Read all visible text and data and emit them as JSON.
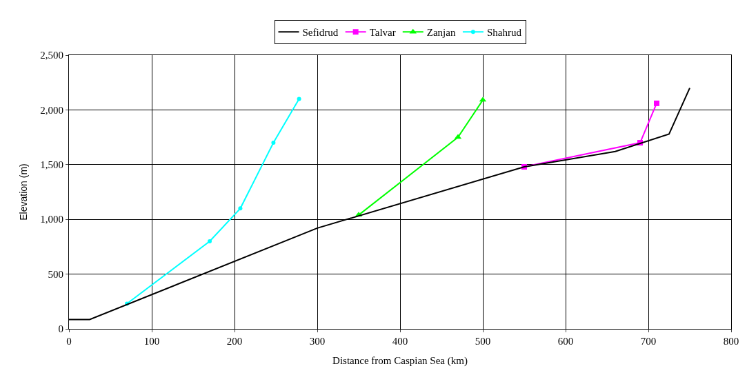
{
  "chart_data": {
    "type": "line",
    "xlabel": "Distance from Caspian Sea (km)",
    "ylabel": "Elevation (m)",
    "xlim": [
      0,
      800
    ],
    "ylim": [
      0,
      2500
    ],
    "xticks": [
      0,
      100,
      200,
      300,
      400,
      500,
      600,
      700,
      800
    ],
    "yticks": [
      {
        "value": 0,
        "label": "0"
      },
      {
        "value": 500,
        "label": "500"
      },
      {
        "value": 1000,
        "label": "1,000"
      },
      {
        "value": 1500,
        "label": "1,500"
      },
      {
        "value": 2000,
        "label": "2,000"
      },
      {
        "value": 2500,
        "label": "2,500"
      }
    ],
    "grid": true,
    "legend": "top",
    "line_style": "solid",
    "series": [
      {
        "name": "Sefidrud",
        "color": "#000000",
        "marker": "none",
        "x": [
          0,
          25,
          300,
          550,
          660,
          725,
          750
        ],
        "values": [
          85,
          85,
          920,
          1480,
          1620,
          1780,
          2200
        ]
      },
      {
        "name": "Talvar",
        "color": "#ff00ff",
        "marker": "square",
        "x": [
          550,
          690,
          710
        ],
        "values": [
          1480,
          1700,
          2060
        ]
      },
      {
        "name": "Zanjan",
        "color": "#00ff00",
        "marker": "triangle",
        "x": [
          350,
          470,
          500
        ],
        "values": [
          1040,
          1750,
          2090
        ]
      },
      {
        "name": "Shahrud",
        "color": "#00ffff",
        "marker": "circle",
        "x": [
          70,
          170,
          207,
          247,
          278
        ],
        "values": [
          230,
          800,
          1100,
          1700,
          2100
        ]
      }
    ]
  }
}
